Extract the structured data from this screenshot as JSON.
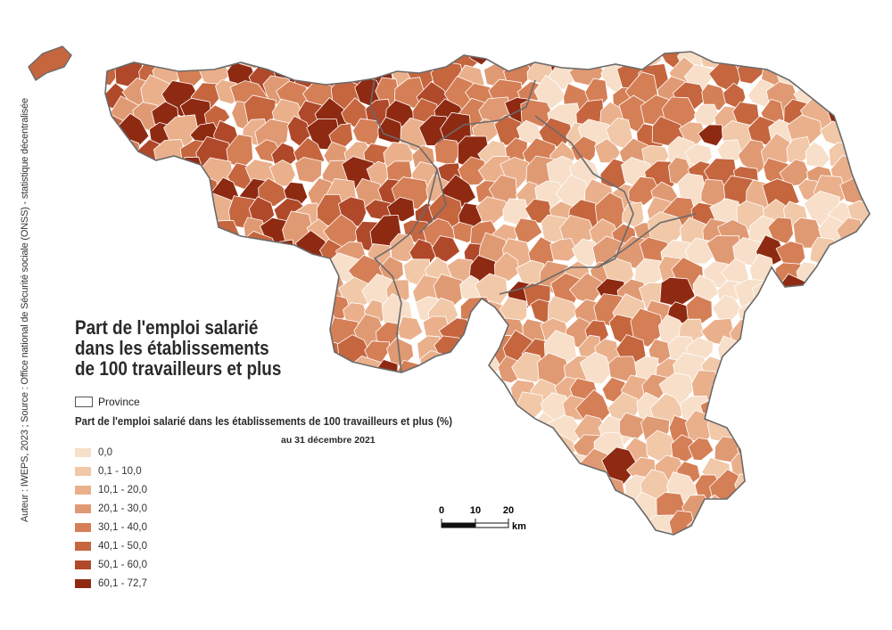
{
  "title_lines": [
    "Part de l'emploi salarié",
    "dans les établissements",
    "de 100 travailleurs et plus"
  ],
  "credit": "Auteur : IWEPS, 2023 ; Source : Office national de Sécurité sociale (ONSS) - statistique décentralisée",
  "legend": {
    "province_label": "Province",
    "title": "Part de l'emploi salarié dans les établissements de 100 travailleurs et plus (%)",
    "subtitle": "au 31 décembre 2021",
    "classes": [
      {
        "label": "0,0",
        "color": "#f7dfc9"
      },
      {
        "label": "0,1 - 10,0",
        "color": "#f1c8a8"
      },
      {
        "label": "10,1 - 20,0",
        "color": "#eab08c"
      },
      {
        "label": "20,1 - 30,0",
        "color": "#e09a73"
      },
      {
        "label": "30,1 - 40,0",
        "color": "#d57f56"
      },
      {
        "label": "40,1 - 50,0",
        "color": "#c5663f"
      },
      {
        "label": "50,1 - 60,0",
        "color": "#b0492a"
      },
      {
        "label": "60,1 - 72,7",
        "color": "#8f2a12"
      }
    ]
  },
  "scale": {
    "ticks": [
      "0",
      "10",
      "20"
    ],
    "unit": "km"
  }
}
